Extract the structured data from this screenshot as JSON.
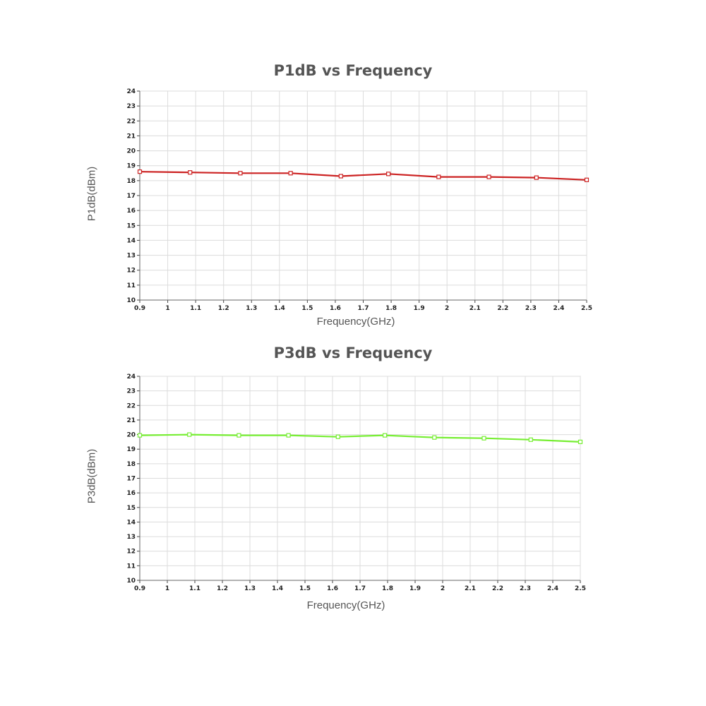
{
  "chart_data": [
    {
      "type": "line",
      "title": "P1dB vs Frequency",
      "xlabel": "Frequency(GHz)",
      "ylabel": "P1dB(dBm)",
      "xlim": [
        0.9,
        2.5
      ],
      "ylim": [
        10,
        24
      ],
      "xticks": [
        "0.9",
        "1",
        "1.1",
        "1.2",
        "1.3",
        "1.4",
        "1.5",
        "1.6",
        "1.7",
        "1.8",
        "1.9",
        "2",
        "2.1",
        "2.2",
        "2.3",
        "2.4",
        "2.5"
      ],
      "yticks": [
        "10",
        "11",
        "12",
        "13",
        "14",
        "15",
        "16",
        "17",
        "18",
        "19",
        "20",
        "21",
        "22",
        "23",
        "24"
      ],
      "grid": true,
      "color": "#cc2222",
      "series": [
        {
          "x": [
            0.9,
            1.08,
            1.26,
            1.44,
            1.62,
            1.79,
            1.97,
            2.15,
            2.32,
            2.5
          ],
          "y": [
            18.6,
            18.55,
            18.5,
            18.5,
            18.3,
            18.45,
            18.25,
            18.25,
            18.2,
            18.05
          ]
        }
      ]
    },
    {
      "type": "line",
      "title": "P3dB vs Frequency",
      "xlabel": "Frequency(GHz)",
      "ylabel": "P3dB(dBm)",
      "xlim": [
        0.9,
        2.5
      ],
      "ylim": [
        10,
        24
      ],
      "xticks": [
        "0.9",
        "1",
        "1.1",
        "1.2",
        "1.3",
        "1.4",
        "1.5",
        "1.6",
        "1.7",
        "1.8",
        "1.9",
        "2",
        "2.1",
        "2.2",
        "2.3",
        "2.4",
        "2.5"
      ],
      "yticks": [
        "10",
        "11",
        "12",
        "13",
        "14",
        "15",
        "16",
        "17",
        "18",
        "19",
        "20",
        "21",
        "22",
        "23",
        "24"
      ],
      "grid": true,
      "color": "#77ee33",
      "series": [
        {
          "x": [
            0.9,
            1.08,
            1.26,
            1.44,
            1.62,
            1.79,
            1.97,
            2.15,
            2.32,
            2.5
          ],
          "y": [
            19.95,
            20.0,
            19.95,
            19.95,
            19.85,
            19.95,
            19.8,
            19.75,
            19.65,
            19.5
          ]
        }
      ]
    }
  ]
}
